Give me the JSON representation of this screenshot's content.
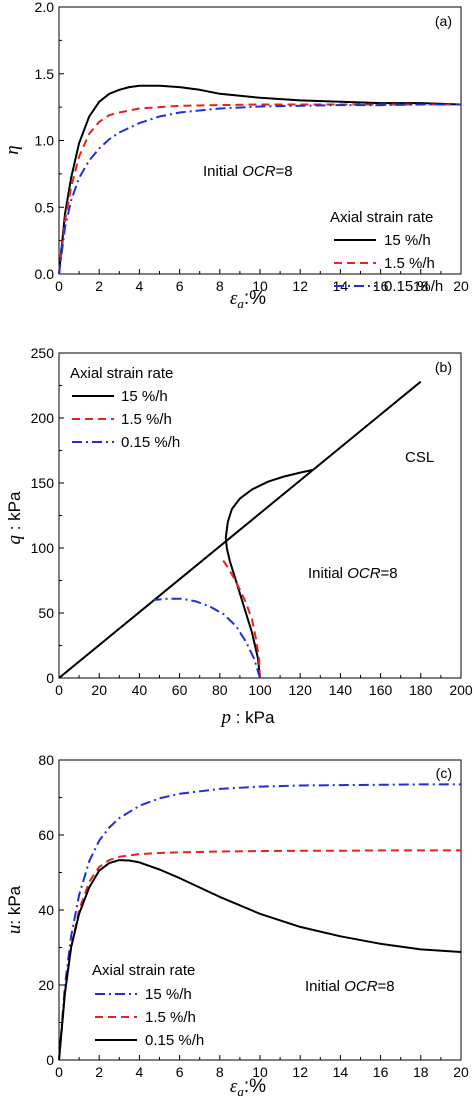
{
  "chart_data": [
    {
      "type": "line",
      "panel_label": "(a)",
      "xlabel": "εa:%",
      "ylabel": "η",
      "xlim": [
        0,
        20
      ],
      "ylim": [
        0,
        2.0
      ],
      "xticks": [
        "0",
        "2",
        "4",
        "6",
        "8",
        "10",
        "12",
        "14",
        "16",
        "18",
        "20"
      ],
      "yticks": [
        "0.0",
        "0.5",
        "1.0",
        "1.5",
        "2.0"
      ],
      "legend_title": "Axial strain rate",
      "legend_position": "lower-right",
      "annotation": "Initial OCR=8",
      "series": [
        {
          "name": "15 %/h",
          "color": "#000000",
          "dash": "solid",
          "x": [
            0,
            0.3,
            0.6,
            1.0,
            1.5,
            2.0,
            2.5,
            3.0,
            3.5,
            4.0,
            4.5,
            5.0,
            6.0,
            7.0,
            8.0,
            10.0,
            12.0,
            14.0,
            16.0,
            18.0,
            20.0
          ],
          "y": [
            0,
            0.45,
            0.72,
            0.98,
            1.18,
            1.29,
            1.35,
            1.38,
            1.4,
            1.41,
            1.41,
            1.41,
            1.4,
            1.38,
            1.35,
            1.32,
            1.3,
            1.29,
            1.28,
            1.28,
            1.27
          ]
        },
        {
          "name": "1.5 %/h",
          "color": "#e8231b",
          "dash": "dashed",
          "x": [
            0,
            0.3,
            0.6,
            1.0,
            1.5,
            2.0,
            2.5,
            3.0,
            4.0,
            5.0,
            6.0,
            8.0,
            10.0,
            12.0,
            14.0,
            16.0,
            18.0,
            20.0
          ],
          "y": [
            0,
            0.4,
            0.65,
            0.88,
            1.05,
            1.14,
            1.19,
            1.21,
            1.24,
            1.25,
            1.26,
            1.265,
            1.27,
            1.27,
            1.27,
            1.27,
            1.27,
            1.27
          ]
        },
        {
          "name": "0.15 %/h",
          "color": "#1f2ed9",
          "dash": "dashdot",
          "x": [
            0,
            0.3,
            0.6,
            1.0,
            1.5,
            2.0,
            2.5,
            3.0,
            4.0,
            5.0,
            6.0,
            8.0,
            10.0,
            12.0,
            14.0,
            16.0,
            18.0,
            20.0
          ],
          "y": [
            0,
            0.35,
            0.55,
            0.72,
            0.85,
            0.94,
            1.01,
            1.06,
            1.13,
            1.18,
            1.21,
            1.24,
            1.255,
            1.26,
            1.265,
            1.265,
            1.27,
            1.27
          ]
        }
      ]
    },
    {
      "type": "line",
      "panel_label": "(b)",
      "xlabel": "p : kPa",
      "ylabel": "q : kPa",
      "xlim": [
        0,
        200
      ],
      "ylim": [
        0,
        250
      ],
      "xticks": [
        "0",
        "20",
        "40",
        "60",
        "80",
        "100",
        "120",
        "140",
        "160",
        "180",
        "200"
      ],
      "yticks": [
        "0",
        "50",
        "100",
        "150",
        "200",
        "250"
      ],
      "legend_title": "Axial strain rate",
      "legend_position": "top-left",
      "annotation": "Initial OCR=8",
      "csl_label": "CSL",
      "csl": {
        "x": [
          0,
          180
        ],
        "y": [
          0,
          228
        ]
      },
      "series": [
        {
          "name": "15 %/h",
          "color": "#000000",
          "dash": "solid",
          "x": [
            100,
            99,
            96,
            92,
            88,
            85,
            83.5,
            83,
            84,
            86,
            90,
            96,
            104,
            112,
            120,
            126
          ],
          "y": [
            0,
            15,
            35,
            55,
            75,
            90,
            100,
            108,
            120,
            130,
            138,
            145,
            151,
            155,
            158,
            160
          ]
        },
        {
          "name": "1.5 %/h",
          "color": "#e8231b",
          "dash": "dashed",
          "x": [
            100,
            99.5,
            98,
            96,
            93,
            90,
            87,
            84,
            81
          ],
          "y": [
            0,
            15,
            30,
            45,
            58,
            68,
            77,
            85,
            92
          ]
        },
        {
          "name": "0.15 %/h",
          "color": "#1f2ed9",
          "dash": "dashdot",
          "x": [
            100,
            97,
            93,
            88,
            82,
            75,
            68,
            61,
            54,
            47
          ],
          "y": [
            0,
            15,
            28,
            40,
            49,
            55,
            59,
            61,
            61,
            60
          ]
        }
      ]
    },
    {
      "type": "line",
      "panel_label": "(c)",
      "xlabel": "εa:%",
      "ylabel": "u: kPa",
      "xlim": [
        0,
        20
      ],
      "ylim": [
        0,
        80
      ],
      "xticks": [
        "0",
        "2",
        "4",
        "6",
        "8",
        "10",
        "12",
        "14",
        "16",
        "18",
        "20"
      ],
      "yticks": [
        "0",
        "20",
        "40",
        "60",
        "80"
      ],
      "legend_title": "Axial strain rate",
      "legend_position": "lower-left",
      "annotation": "Initial OCR=8",
      "series": [
        {
          "name": "15 %/h",
          "color": "#1f2ed9",
          "dash": "dashdot",
          "x": [
            0,
            0.3,
            0.6,
            1.0,
            1.5,
            2.0,
            2.5,
            3.0,
            4.0,
            5.0,
            6.0,
            8.0,
            10.0,
            12.0,
            14.0,
            16.0,
            18.0,
            20.0
          ],
          "y": [
            0,
            20,
            33,
            44,
            53,
            58.5,
            62,
            64.5,
            67.8,
            69.8,
            71.0,
            72.3,
            72.9,
            73.2,
            73.3,
            73.4,
            73.5,
            73.5
          ]
        },
        {
          "name": "1.5 %/h",
          "color": "#e8231b",
          "dash": "dashed",
          "x": [
            0,
            0.3,
            0.6,
            1.0,
            1.5,
            2.0,
            2.5,
            3.0,
            4.0,
            5.0,
            6.0,
            8.0,
            10.0,
            12.0,
            14.0,
            16.0,
            18.0,
            20.0
          ],
          "y": [
            0,
            18,
            30,
            40,
            47.5,
            51.5,
            53.3,
            54.2,
            54.9,
            55.2,
            55.4,
            55.6,
            55.7,
            55.8,
            55.8,
            55.9,
            55.9,
            55.9
          ]
        },
        {
          "name": "0.15 %/h",
          "color": "#000000",
          "dash": "solid",
          "x": [
            0,
            0.3,
            0.6,
            1.0,
            1.5,
            2.0,
            2.5,
            3.0,
            3.5,
            4.0,
            5.0,
            6.0,
            7.0,
            8.0,
            10.0,
            12.0,
            14.0,
            16.0,
            18.0,
            20.0
          ],
          "y": [
            0,
            18,
            30,
            39,
            46,
            50.5,
            52.5,
            53.3,
            53.2,
            52.7,
            50.8,
            48.5,
            46.0,
            43.5,
            39.0,
            35.5,
            33.0,
            31.0,
            29.5,
            28.8
          ]
        }
      ]
    }
  ]
}
